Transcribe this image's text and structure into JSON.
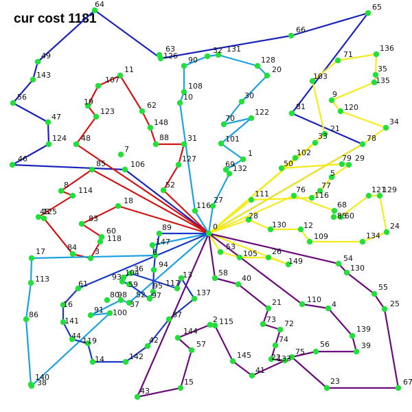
{
  "title": "cur cost 1181",
  "depot_label": "0",
  "colors": {
    "node": "#22e03a",
    "route_1": "#1822b8",
    "route_2": "#d01414",
    "route_3": "#1aa0e0",
    "route_4": "#f5ea1a",
    "route_5": "#6a0a7a",
    "route_6": "#1838c8"
  },
  "nodes": [
    {
      "id": "0",
      "label": "0"
    },
    {
      "id": "64",
      "label": "64"
    },
    {
      "id": "49",
      "label": "49"
    },
    {
      "id": "143",
      "label": "143"
    },
    {
      "id": "56",
      "label": "56"
    },
    {
      "id": "47",
      "label": "47"
    },
    {
      "id": "124",
      "label": "124"
    },
    {
      "id": "46",
      "label": "46"
    },
    {
      "id": "63",
      "label": "63"
    },
    {
      "id": "126",
      "label": "126"
    },
    {
      "id": "66",
      "label": "66"
    },
    {
      "id": "65",
      "label": "65"
    },
    {
      "id": "81",
      "label": "81"
    },
    {
      "id": "78",
      "label": "78"
    },
    {
      "id": "11",
      "label": "11"
    },
    {
      "id": "107",
      "label": "107"
    },
    {
      "id": "19",
      "label": "19"
    },
    {
      "id": "123",
      "label": "123"
    },
    {
      "id": "48",
      "label": "48"
    },
    {
      "id": "62",
      "label": "62"
    },
    {
      "id": "148",
      "label": "148"
    },
    {
      "id": "88",
      "label": "88"
    },
    {
      "id": "31",
      "label": "31"
    },
    {
      "id": "127",
      "label": "127"
    },
    {
      "id": "52",
      "label": "52"
    },
    {
      "id": "7",
      "label": "7"
    },
    {
      "id": "106",
      "label": "106"
    },
    {
      "id": "85",
      "label": "85"
    },
    {
      "id": "8",
      "label": "8"
    },
    {
      "id": "114",
      "label": "114"
    },
    {
      "id": "125",
      "label": "125"
    },
    {
      "id": "45",
      "label": "45"
    },
    {
      "id": "18",
      "label": "18"
    },
    {
      "id": "83",
      "label": "83"
    },
    {
      "id": "60",
      "label": "60"
    },
    {
      "id": "118",
      "label": "118"
    },
    {
      "id": "84",
      "label": "84"
    },
    {
      "id": "3",
      "label": "3"
    },
    {
      "id": "90",
      "label": "90"
    },
    {
      "id": "32",
      "label": "32"
    },
    {
      "id": "131",
      "label": "131"
    },
    {
      "id": "128",
      "label": "128"
    },
    {
      "id": "20",
      "label": "20"
    },
    {
      "id": "108",
      "label": "108"
    },
    {
      "id": "10",
      "label": "10"
    },
    {
      "id": "30",
      "label": "30"
    },
    {
      "id": "70",
      "label": "70"
    },
    {
      "id": "122",
      "label": "122"
    },
    {
      "id": "101",
      "label": "101"
    },
    {
      "id": "1",
      "label": "1"
    },
    {
      "id": "69",
      "label": "69"
    },
    {
      "id": "132",
      "label": "132"
    },
    {
      "id": "27",
      "label": "27"
    },
    {
      "id": "116",
      "label": "116"
    },
    {
      "id": "89",
      "label": "89"
    },
    {
      "id": "147",
      "label": "147"
    },
    {
      "id": "6",
      "label": "6"
    },
    {
      "id": "17",
      "label": "17"
    },
    {
      "id": "113",
      "label": "113"
    },
    {
      "id": "86",
      "label": "86"
    },
    {
      "id": "140",
      "label": "140"
    },
    {
      "id": "38",
      "label": "38"
    },
    {
      "id": "80",
      "label": "80"
    },
    {
      "id": "91",
      "label": "91"
    },
    {
      "id": "100",
      "label": "100"
    },
    {
      "id": "98",
      "label": "98"
    },
    {
      "id": "37",
      "label": "37"
    },
    {
      "id": "61",
      "label": "61"
    },
    {
      "id": "16",
      "label": "16"
    },
    {
      "id": "141",
      "label": "141"
    },
    {
      "id": "44",
      "label": "44"
    },
    {
      "id": "119",
      "label": "119"
    },
    {
      "id": "14",
      "label": "14"
    },
    {
      "id": "142",
      "label": "142"
    },
    {
      "id": "42",
      "label": "42"
    },
    {
      "id": "87",
      "label": "87"
    },
    {
      "id": "137",
      "label": "137"
    },
    {
      "id": "13",
      "label": "13"
    },
    {
      "id": "117",
      "label": "117"
    },
    {
      "id": "36",
      "label": "36"
    },
    {
      "id": "104",
      "label": "104"
    },
    {
      "id": "93",
      "label": "93"
    },
    {
      "id": "59",
      "label": "59"
    },
    {
      "id": "52b",
      "label": "52"
    },
    {
      "id": "95",
      "label": "95"
    },
    {
      "id": "94",
      "label": "94"
    },
    {
      "id": "97",
      "label": "97"
    },
    {
      "id": "71",
      "label": "71"
    },
    {
      "id": "136",
      "label": "136"
    },
    {
      "id": "35",
      "label": "35"
    },
    {
      "id": "135",
      "label": "135"
    },
    {
      "id": "103",
      "label": "103"
    },
    {
      "id": "9",
      "label": "9"
    },
    {
      "id": "120",
      "label": "120"
    },
    {
      "id": "34",
      "label": "34"
    },
    {
      "id": "21b",
      "label": "21"
    },
    {
      "id": "33",
      "label": "33"
    },
    {
      "id": "102",
      "label": "102"
    },
    {
      "id": "50",
      "label": "50"
    },
    {
      "id": "79",
      "label": "79"
    },
    {
      "id": "29",
      "label": "29"
    },
    {
      "id": "5",
      "label": "5"
    },
    {
      "id": "77",
      "label": "77"
    },
    {
      "id": "111",
      "label": "111"
    },
    {
      "id": "76",
      "label": "76"
    },
    {
      "id": "116b",
      "label": "116"
    },
    {
      "id": "68",
      "label": "68"
    },
    {
      "id": "85b",
      "label": "85"
    },
    {
      "id": "60b",
      "label": "60"
    },
    {
      "id": "121",
      "label": "121"
    },
    {
      "id": "129",
      "label": "129"
    },
    {
      "id": "24",
      "label": "24"
    },
    {
      "id": "134",
      "label": "134"
    },
    {
      "id": "109",
      "label": "109"
    },
    {
      "id": "12",
      "label": "12"
    },
    {
      "id": "130b",
      "label": "130"
    },
    {
      "id": "28",
      "label": "28"
    },
    {
      "id": "149",
      "label": "149"
    },
    {
      "id": "26",
      "label": "26"
    },
    {
      "id": "105",
      "label": "105"
    },
    {
      "id": "53",
      "label": "53"
    },
    {
      "id": "58",
      "label": "58"
    },
    {
      "id": "40",
      "label": "40"
    },
    {
      "id": "21",
      "label": "21"
    },
    {
      "id": "73",
      "label": "73"
    },
    {
      "id": "72",
      "label": "72"
    },
    {
      "id": "74",
      "label": "74"
    },
    {
      "id": "22",
      "label": "22"
    },
    {
      "id": "133",
      "label": "133"
    },
    {
      "id": "75",
      "label": "75"
    },
    {
      "id": "56b",
      "label": "56"
    },
    {
      "id": "39",
      "label": "39"
    },
    {
      "id": "139",
      "label": "139"
    },
    {
      "id": "4",
      "label": "4"
    },
    {
      "id": "110",
      "label": "110"
    },
    {
      "id": "54",
      "label": "54"
    },
    {
      "id": "130",
      "label": "130"
    },
    {
      "id": "55",
      "label": "55"
    },
    {
      "id": "25",
      "label": "25"
    },
    {
      "id": "67",
      "label": "67"
    },
    {
      "id": "23",
      "label": "23"
    },
    {
      "id": "41",
      "label": "41"
    },
    {
      "id": "145",
      "label": "145"
    },
    {
      "id": "115",
      "label": "115"
    },
    {
      "id": "2",
      "label": "2"
    },
    {
      "id": "144",
      "label": "144"
    },
    {
      "id": "57",
      "label": "57"
    },
    {
      "id": "15",
      "label": "15"
    },
    {
      "id": "43",
      "label": "43"
    }
  ],
  "routes": [
    {
      "color": "route_1",
      "path": [
        "0",
        "106",
        "46",
        "124",
        "47",
        "56",
        "143",
        "49",
        "64",
        "126",
        "66",
        "65",
        "81",
        "78",
        "0"
      ]
    },
    {
      "color": "route_2",
      "path": [
        "0",
        "52",
        "127",
        "31",
        "88",
        "148",
        "62",
        "11",
        "107",
        "19",
        "123",
        "48",
        "0",
        "85",
        "8",
        "114",
        "125",
        "45",
        "84",
        "3",
        "118",
        "60",
        "83",
        "18",
        "0"
      ]
    },
    {
      "color": "route_3",
      "path": [
        "0",
        "116",
        "10",
        "108",
        "90",
        "32",
        "131",
        "128",
        "20",
        "30",
        "70",
        "122",
        "101",
        "1",
        "69",
        "132",
        "27",
        "0",
        "147",
        "6",
        "17",
        "113",
        "86",
        "140",
        "38",
        "100",
        "91",
        "98",
        "37",
        "0"
      ]
    },
    {
      "color": "route_6",
      "path": [
        "0",
        "61",
        "16",
        "141",
        "44",
        "119",
        "14",
        "142",
        "42",
        "87",
        "137",
        "13",
        "117",
        "36",
        "104",
        "93",
        "59",
        "52b",
        "95",
        "94",
        "6",
        "89",
        "0"
      ]
    },
    {
      "color": "route_4",
      "path": [
        "0",
        "33",
        "102",
        "50",
        "79",
        "29",
        "5",
        "77",
        "116b",
        "111",
        "0",
        "76",
        "68",
        "85b",
        "60b",
        "121",
        "129",
        "24",
        "134",
        "109",
        "12",
        "130b",
        "28",
        "0",
        "21b",
        "103",
        "71",
        "136",
        "35",
        "135",
        "9",
        "120",
        "34",
        "78",
        "0",
        "149",
        "26",
        "105",
        "53",
        "0"
      ]
    },
    {
      "color": "route_5",
      "path": [
        "0",
        "58",
        "40",
        "21",
        "73",
        "72",
        "74",
        "22",
        "133",
        "75",
        "56b",
        "39",
        "139",
        "4",
        "110",
        "0",
        "54",
        "130",
        "55",
        "25",
        "67",
        "23",
        "75",
        "133",
        "41",
        "145",
        "115",
        "2",
        "144",
        "57",
        "15",
        "43",
        "0"
      ]
    }
  ]
}
